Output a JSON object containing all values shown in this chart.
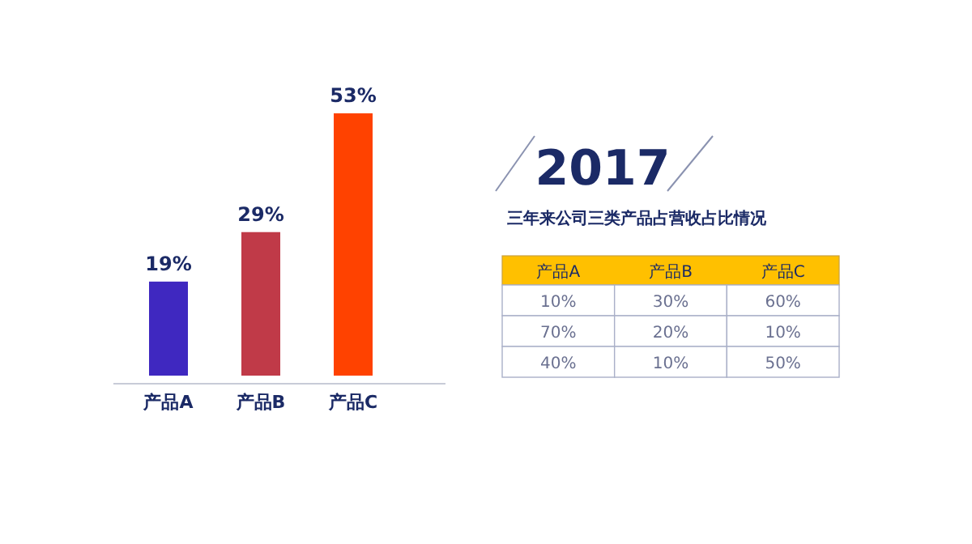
{
  "chart_data": [
    {
      "type": "bar",
      "categories": [
        "产品A",
        "产品B",
        "产品C"
      ],
      "values": [
        19,
        29,
        53
      ],
      "colors": [
        "#3f28c0",
        "#c03a48",
        "#ff4200"
      ],
      "value_labels": [
        "19%",
        "29%",
        "53%"
      ]
    },
    {
      "type": "other",
      "title": "2017",
      "subtitle": "三年来公司三类产品占营收占比情况",
      "color": "#ffc000",
      "categories": [
        "产品A",
        "产品B",
        "产品C"
      ],
      "cell_labels": [
        [
          "10%",
          "30%",
          "60%"
        ],
        [
          "70%",
          "20%",
          "10%"
        ],
        [
          "40%",
          "10%",
          "50%"
        ]
      ]
    }
  ]
}
